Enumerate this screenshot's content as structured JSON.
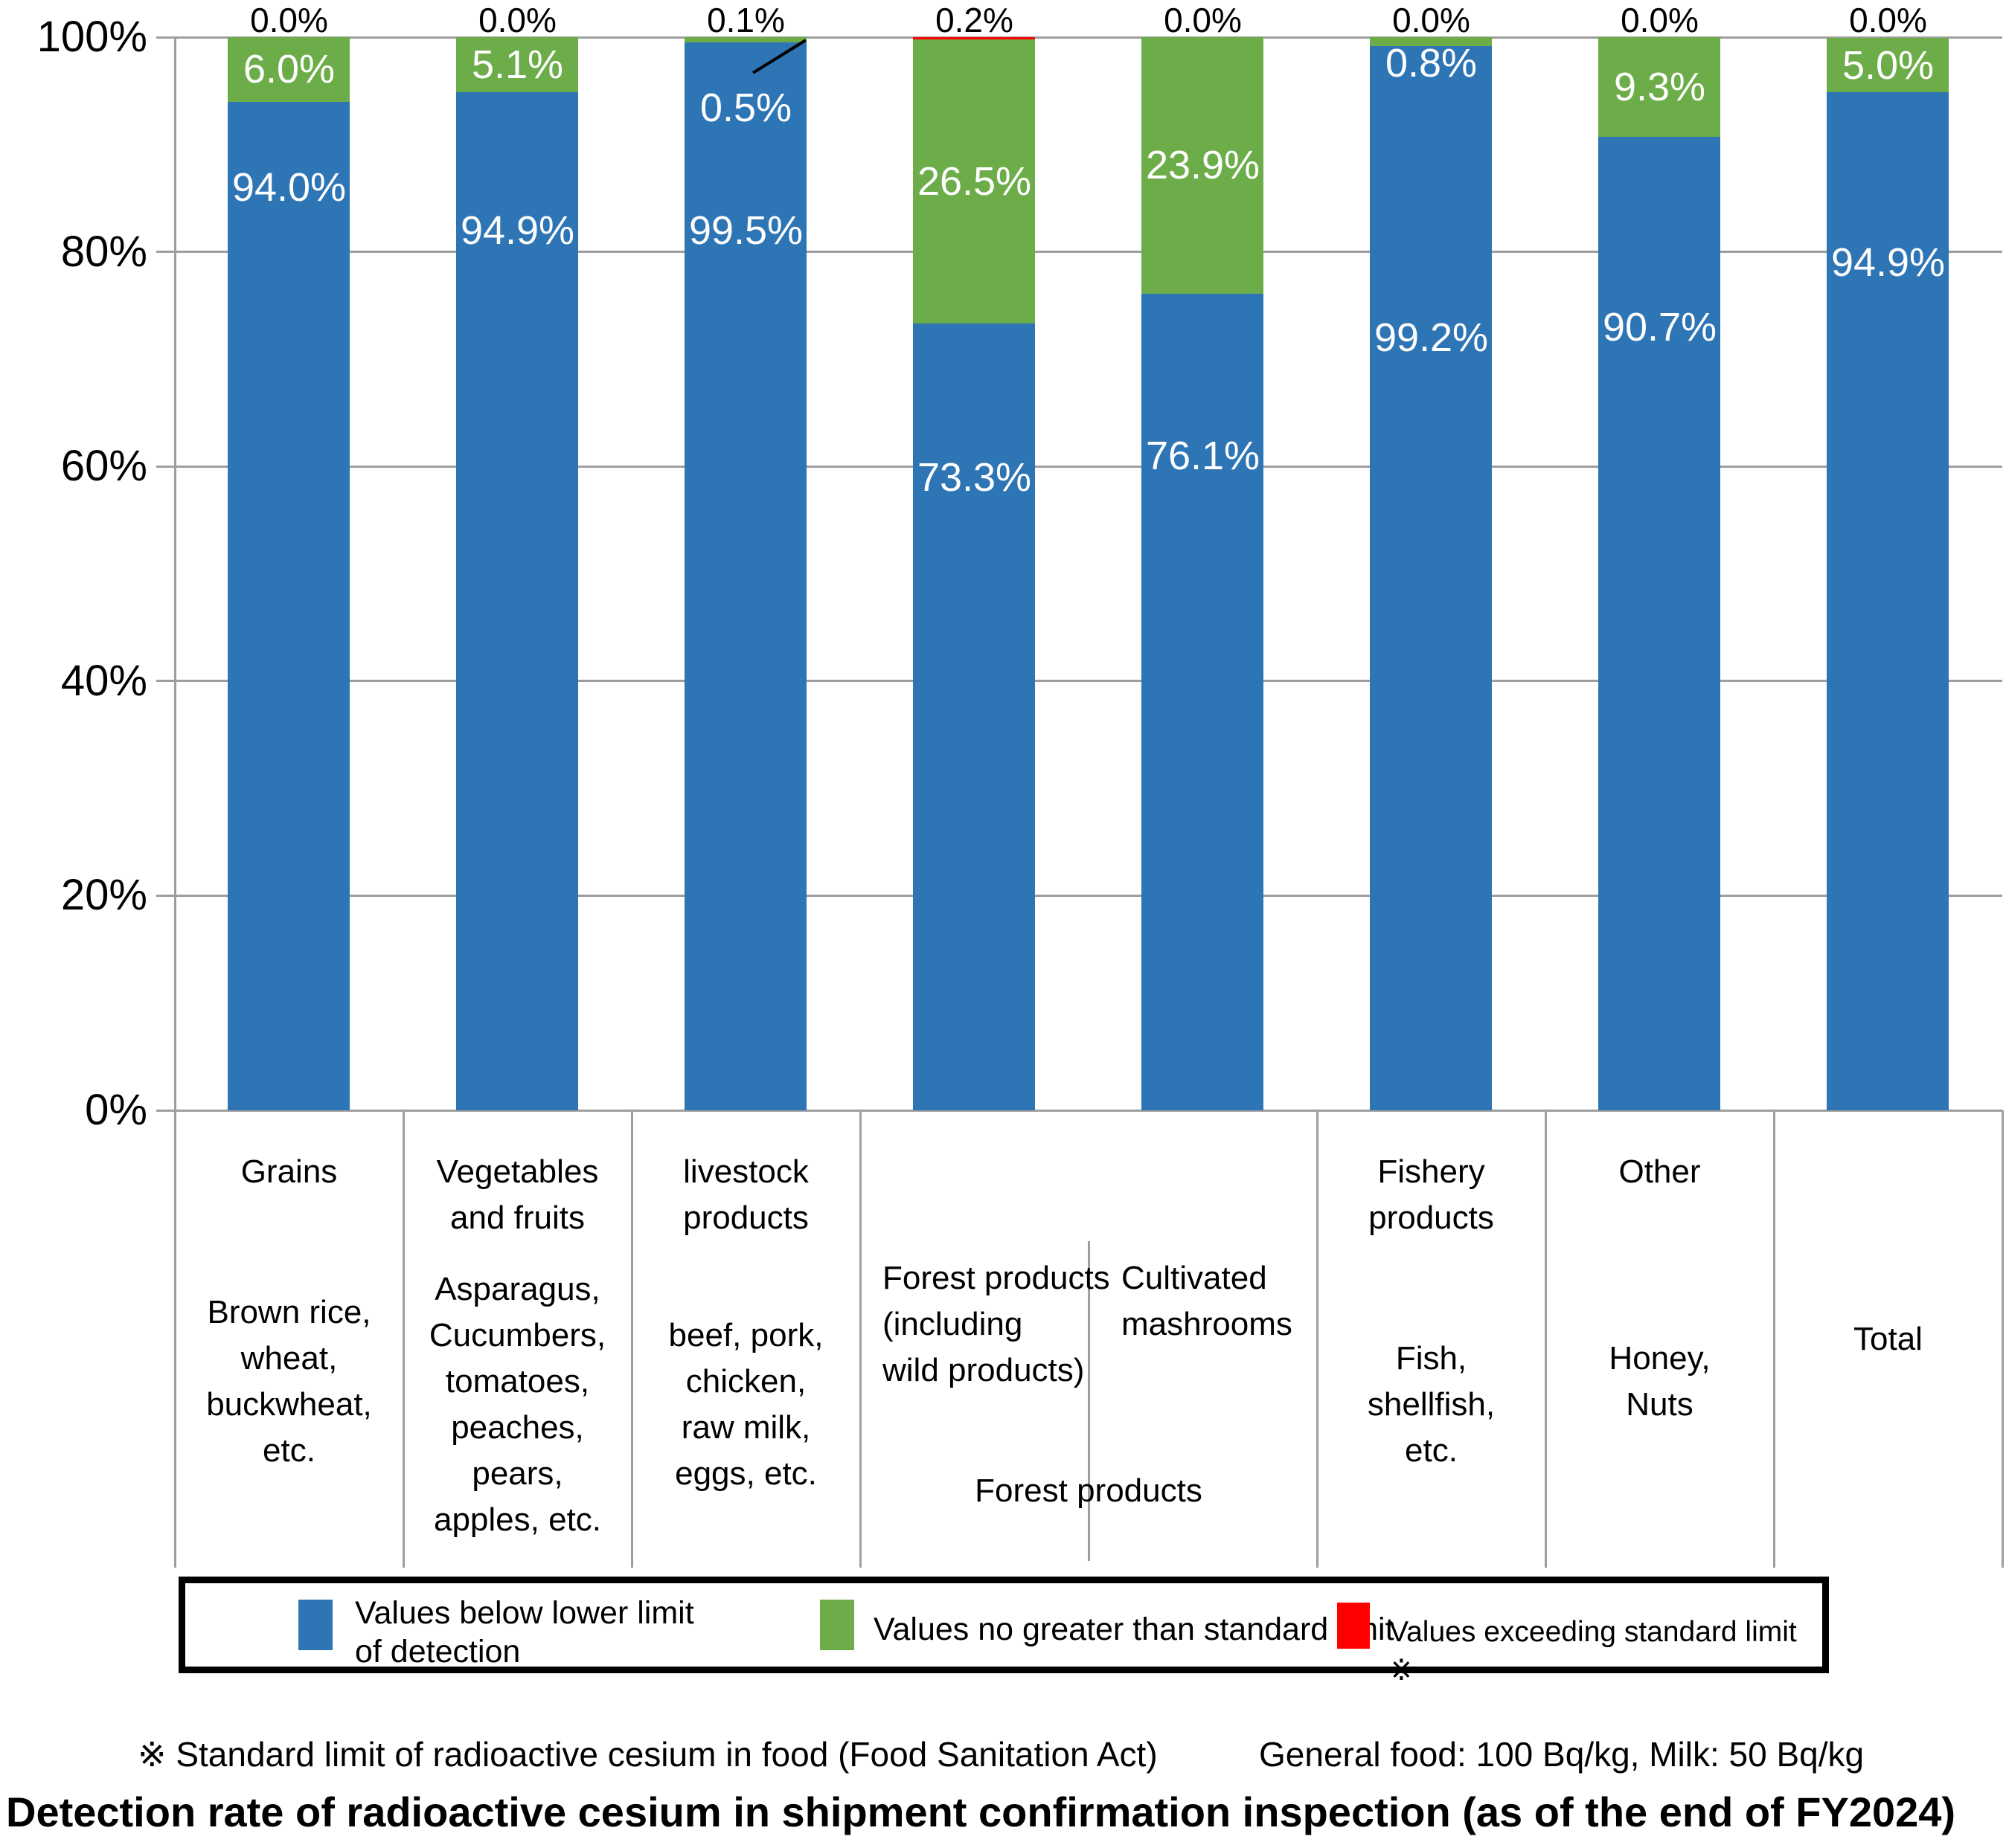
{
  "title": "Detection rate of radioactive cesium in shipment confirmation inspection (as of the end of FY2024)",
  "footnote": {
    "left": "※ Standard limit of radioactive cesium in food (Food Sanitation Act)",
    "right": "General food: 100 Bq/kg, Milk: 50 Bq/kg"
  },
  "legend": {
    "item1": {
      "line1": "Values below lower limit",
      "line2": "of detection"
    },
    "item2": {
      "label": "Values no greater than standard limit"
    },
    "item3": {
      "label": "Values exceeding standard limit ※"
    }
  },
  "chart_data": {
    "type": "bar",
    "stacked": true,
    "unit": "%",
    "title": "Detection rate of radioactive cesium in shipment confirmation inspection (as of the end of FY2024)",
    "ylim": [
      0,
      100
    ],
    "y_ticks": [
      "0%",
      "20%",
      "40%",
      "60%",
      "80%",
      "100%"
    ],
    "grid": "horizontal",
    "legend_position": "bottom",
    "series_names": [
      "Values below lower limit of detection",
      "Values no greater than standard limit",
      "Values exceeding standard limit"
    ],
    "colors": {
      "below": "#2E75B6",
      "within": "#6CAD49",
      "exceed": "#FF0000",
      "gridline": "#9E9E9E"
    },
    "group_label": "Forest products",
    "categories": [
      {
        "name": "Grains",
        "title_lines": [
          "Grains"
        ],
        "sub_lines": [
          "Brown rice,",
          "wheat,",
          "buckwheat,",
          "etc."
        ],
        "below": 94.0,
        "within": 6.0,
        "exceed": 0.0,
        "labels": {
          "below": "94.0%",
          "within": "6.0%",
          "exceed": "0.0%"
        },
        "below_label_at": 86
      },
      {
        "name": "Vegetables and fruits",
        "title_lines": [
          "Vegetables",
          "and fruits"
        ],
        "sub_lines": [
          "Asparagus,",
          "Cucumbers,",
          "tomatoes,",
          "peaches,",
          "pears,",
          "apples, etc."
        ],
        "below": 94.9,
        "within": 5.1,
        "exceed": 0.0,
        "labels": {
          "below": "94.9%",
          "within": "5.1%",
          "exceed": "0.0%"
        },
        "below_label_at": 82
      },
      {
        "name": "livestock products",
        "title_lines": [
          "livestock",
          "products"
        ],
        "sub_lines": [
          "beef, pork,",
          "chicken,",
          "raw milk,",
          "eggs, etc."
        ],
        "below": 99.5,
        "within": 0.5,
        "exceed": 0.1,
        "labels": {
          "below": "99.5%",
          "within": "0.5%",
          "exceed": "0.1%"
        },
        "below_label_at": 82,
        "within_label_at": 93.4,
        "leader_line": true
      },
      {
        "name": "Forest products (including wild products)",
        "group": "forest",
        "title_lines": [],
        "sub_lines": [
          "Forest products",
          "(including",
          "wild products)"
        ],
        "below": 73.3,
        "within": 26.5,
        "exceed": 0.2,
        "labels": {
          "below": "73.3%",
          "within": "26.5%",
          "exceed": "0.2%"
        },
        "below_label_at": 59
      },
      {
        "name": "Cultivated mashrooms",
        "group": "forest",
        "title_lines": [],
        "sub_lines": [
          "Cultivated",
          "mashrooms"
        ],
        "below": 76.1,
        "within": 23.9,
        "exceed": 0.0,
        "labels": {
          "below": "76.1%",
          "within": "23.9%",
          "exceed": "0.0%"
        },
        "below_label_at": 61
      },
      {
        "name": "Fishery products",
        "title_lines": [
          "Fishery",
          "products"
        ],
        "sub_lines": [
          "Fish,",
          "shellfish,",
          "etc."
        ],
        "below": 99.2,
        "within": 0.8,
        "exceed": 0.0,
        "labels": {
          "below": "99.2%",
          "within": "0.8%",
          "exceed": "0.0%"
        },
        "below_label_at": 72,
        "within_label_at": 97.6
      },
      {
        "name": "Other",
        "title_lines": [
          "Other"
        ],
        "sub_lines": [
          "Honey,",
          "Nuts"
        ],
        "below": 90.7,
        "within": 9.3,
        "exceed": 0.0,
        "labels": {
          "below": "90.7%",
          "within": "9.3%",
          "exceed": "0.0%"
        },
        "below_label_at": 73
      },
      {
        "name": "Total",
        "title_lines": [],
        "sub_lines": [
          "Total"
        ],
        "below": 94.9,
        "within": 5.0,
        "exceed": 0.0,
        "labels": {
          "below": "94.9%",
          "within": "5.0%",
          "exceed": "0.0%"
        },
        "below_label_at": 79
      }
    ]
  }
}
